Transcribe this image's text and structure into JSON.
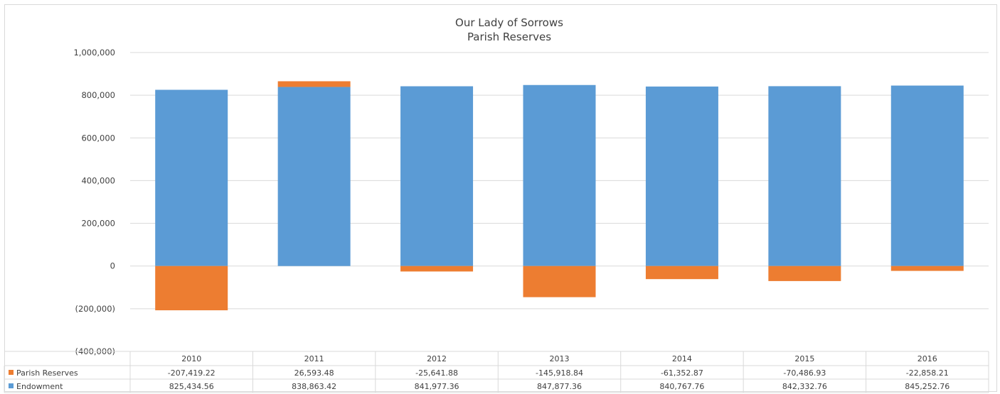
{
  "chart_data": {
    "type": "bar",
    "stacked": true,
    "title": "Our Lady of Sorrows",
    "subtitle": "Parish Reserves",
    "categories": [
      "2010",
      "2011",
      "2012",
      "2013",
      "2014",
      "2015",
      "2016"
    ],
    "series": [
      {
        "name": "Parish Reserves",
        "color": "#ed7d31",
        "values": [
          -207419.22,
          26593.48,
          -25641.88,
          -145918.84,
          -61352.87,
          -70486.93,
          -22858.21
        ],
        "labels": [
          "-207,419.22",
          "26,593.48",
          "-25,641.88",
          "-145,918.84",
          "-61,352.87",
          "-70,486.93",
          "-22,858.21"
        ]
      },
      {
        "name": "Endowment",
        "color": "#5b9bd5",
        "values": [
          825434.56,
          838863.42,
          841977.36,
          847877.36,
          840767.76,
          842332.76,
          845252.76
        ],
        "labels": [
          "825,434.56",
          "838,863.42",
          "841,977.36",
          "847,877.36",
          "840,767.76",
          "842,332.76",
          "845,252.76"
        ]
      }
    ],
    "ylim": [
      -400000,
      1000000
    ],
    "yticks": [
      1000000,
      800000,
      600000,
      400000,
      200000,
      0,
      -200000,
      -400000
    ],
    "ytick_labels": [
      "1,000,000",
      "800,000",
      "600,000",
      "400,000",
      "200,000",
      "0",
      "(200,000)",
      "(400,000)"
    ],
    "grid": true,
    "legend": "data-table"
  }
}
